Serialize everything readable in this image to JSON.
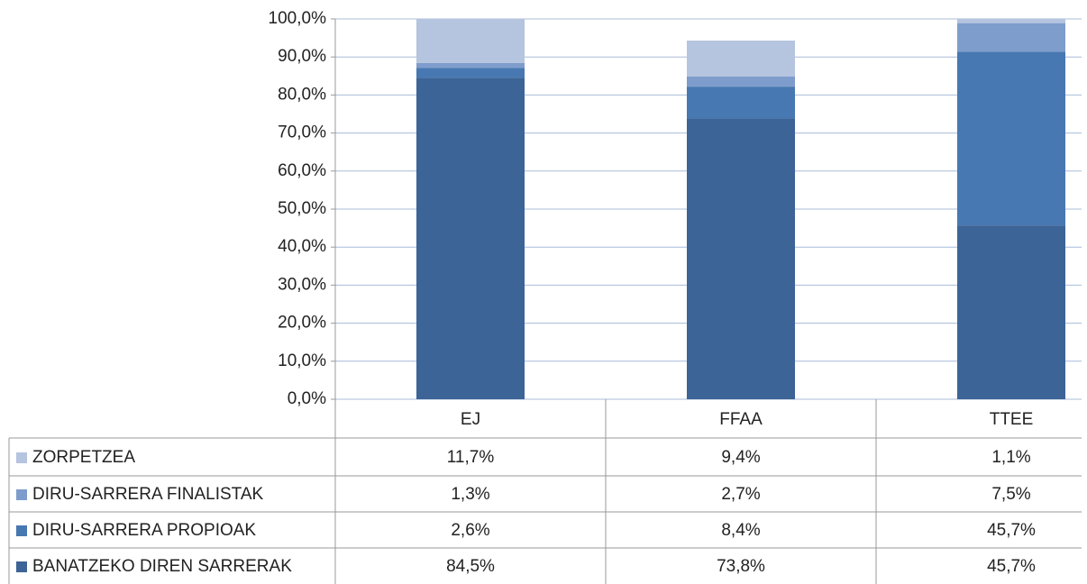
{
  "chart_data": {
    "type": "bar",
    "stacked": true,
    "categories": [
      "EJ",
      "FFAA",
      "TTEE"
    ],
    "series": [
      {
        "name": "BANATZEKO DIREN SARRERAK",
        "color": "#3c6496",
        "values": [
          84.5,
          73.8,
          45.7
        ],
        "value_labels": [
          "84,5%",
          "73,8%",
          "45,7%"
        ]
      },
      {
        "name": "DIRU-SARRERA PROPIOAK",
        "color": "#4778b1",
        "values": [
          2.6,
          8.4,
          45.7
        ],
        "value_labels": [
          "2,6%",
          "8,4%",
          "45,7%"
        ]
      },
      {
        "name": "DIRU-SARRERA FINALISTAK",
        "color": "#7f9dcc",
        "values": [
          1.3,
          2.7,
          7.5
        ],
        "value_labels": [
          "1,3%",
          "2,7%",
          "7,5%"
        ]
      },
      {
        "name": "ZORPETZEA",
        "color": "#b5c4df",
        "values": [
          11.7,
          9.4,
          1.1
        ],
        "value_labels": [
          "11,7%",
          "9,4%",
          "1,1%"
        ]
      }
    ],
    "ylim": [
      0,
      100
    ],
    "yticks": [
      {
        "value": 0,
        "label": "0,0%"
      },
      {
        "value": 10,
        "label": "10,0%"
      },
      {
        "value": 20,
        "label": "20,0%"
      },
      {
        "value": 30,
        "label": "30,0%"
      },
      {
        "value": 40,
        "label": "40,0%"
      },
      {
        "value": 50,
        "label": "50,0%"
      },
      {
        "value": 60,
        "label": "60,0%"
      },
      {
        "value": 70,
        "label": "70,0%"
      },
      {
        "value": 80,
        "label": "80,0%"
      },
      {
        "value": 90,
        "label": "90,0%"
      },
      {
        "value": 100,
        "label": "100,0%"
      }
    ],
    "grid": true,
    "data_table": true
  }
}
